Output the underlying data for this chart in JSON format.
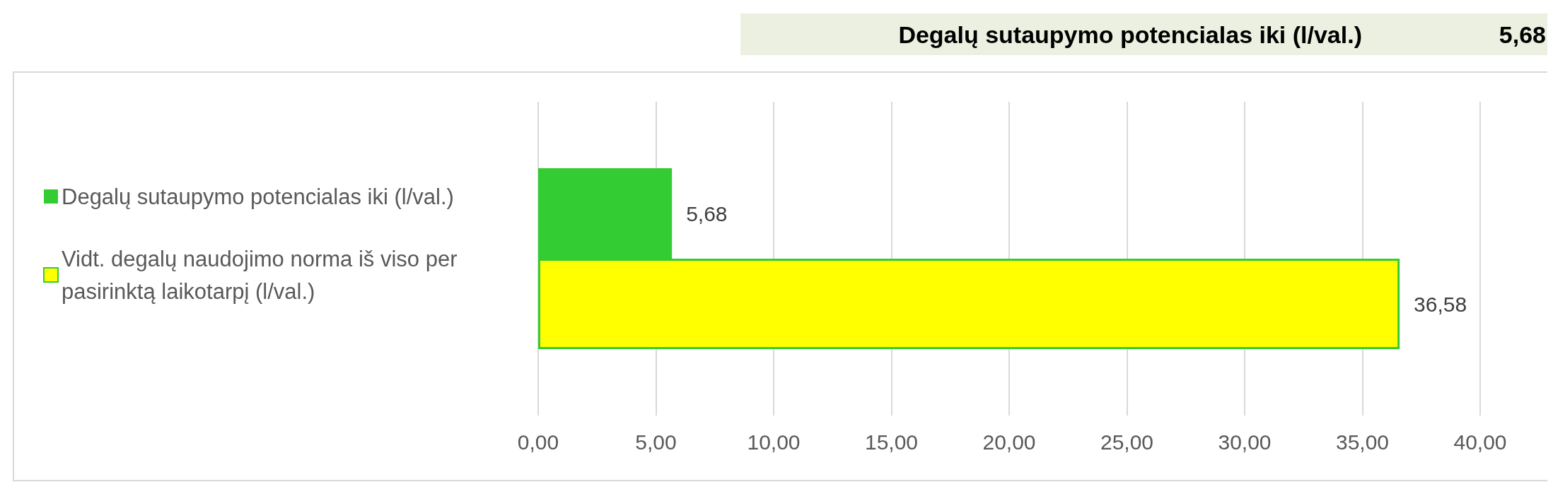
{
  "chart_data": {
    "type": "bar",
    "orientation": "horizontal",
    "title": "Degalų sutaupymo potencialas iki (l/val.)",
    "annotations": [
      "5,68"
    ],
    "categories": [
      null
    ],
    "series": [
      {
        "name": "Degalų sutaupymo potencialas iki (l/val.)",
        "color": "#33cc33",
        "values": [
          5.68
        ],
        "value_labels": [
          "5,68"
        ]
      },
      {
        "name": "Vidt. degalų naudojimo norma iš viso per pasirinktą laikotarpį (l/val.)",
        "color": "#ffff00",
        "values": [
          36.58
        ],
        "value_labels": [
          "36,58"
        ]
      }
    ],
    "xlim": [
      0,
      40
    ],
    "xticks": [
      {
        "value": 0,
        "label": "0,00"
      },
      {
        "value": 5,
        "label": "5,00"
      },
      {
        "value": 10,
        "label": "10,00"
      },
      {
        "value": 15,
        "label": "15,00"
      },
      {
        "value": 20,
        "label": "20,00"
      },
      {
        "value": 25,
        "label": "25,00"
      },
      {
        "value": 30,
        "label": "30,00"
      },
      {
        "value": 35,
        "label": "35,00"
      },
      {
        "value": 40,
        "label": "40,00"
      }
    ],
    "grid": "x",
    "legend": "left"
  }
}
